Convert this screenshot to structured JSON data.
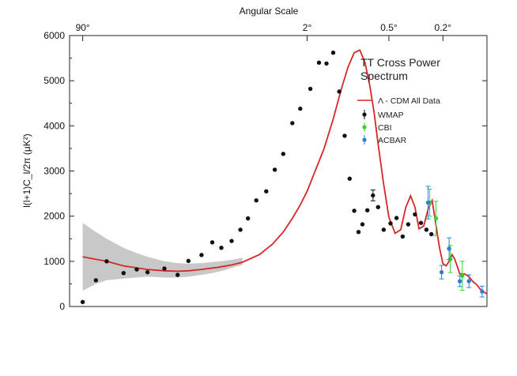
{
  "chart_data": {
    "type": "scatter",
    "title": "",
    "annotation": [
      "TT Cross Power",
      "Spectrum"
    ],
    "ylabel": "l(l+1)C_l/2π (μK²)",
    "top_axis_label": "Angular Scale",
    "top_ticks": [
      {
        "label": "90°",
        "at": 2
      },
      {
        "label": "2°",
        "at": 90
      },
      {
        "label": "0.5°",
        "at": 360
      },
      {
        "label": "0.2°",
        "at": 900
      }
    ],
    "ylim": [
      0,
      6000
    ],
    "y_ticks": [
      0,
      1000,
      2000,
      3000,
      4000,
      5000,
      6000
    ],
    "x_scale": "log",
    "xlim": [
      1.6,
      1900
    ],
    "legend": {
      "placement": "right",
      "entries": [
        {
          "label": "Λ - CDM All Data",
          "color": "#d62728",
          "kind": "line"
        },
        {
          "label": "WMAP",
          "color": "#111111",
          "kind": "point"
        },
        {
          "label": "CBI",
          "color": "#2bd92b",
          "kind": "point"
        },
        {
          "label": "ACBAR",
          "color": "#2c7fd4",
          "kind": "point"
        }
      ]
    },
    "model": {
      "name": "Λ - CDM All Data",
      "color": "#d62728",
      "x": [
        2,
        3,
        4,
        6,
        8,
        10,
        12,
        15,
        20,
        25,
        30,
        40,
        50,
        60,
        70,
        80,
        90,
        100,
        120,
        140,
        160,
        180,
        200,
        220,
        240,
        260,
        280,
        300,
        330,
        360,
        400,
        440,
        480,
        520,
        560,
        600,
        650,
        700,
        750,
        800,
        850,
        900,
        950,
        1000,
        1050,
        1100,
        1150,
        1200,
        1300,
        1400,
        1500,
        1600,
        1700,
        1800,
        1900
      ],
      "y": [
        1100,
        1000,
        900,
        820,
        790,
        780,
        790,
        820,
        870,
        920,
        980,
        1150,
        1380,
        1650,
        1950,
        2250,
        2550,
        2900,
        3500,
        4150,
        4800,
        5300,
        5620,
        5680,
        5400,
        4900,
        4300,
        3600,
        2700,
        1980,
        1620,
        1700,
        2200,
        2450,
        2200,
        1720,
        1780,
        2150,
        2350,
        1800,
        1300,
        950,
        900,
        1000,
        1150,
        1050,
        880,
        720,
        720,
        660,
        550,
        480,
        380,
        320,
        280
      ]
    },
    "band": {
      "x": [
        2,
        2.5,
        3,
        4,
        5,
        6,
        8,
        10,
        12,
        15,
        18,
        22,
        26,
        30
      ],
      "upper": [
        1850,
        1650,
        1500,
        1300,
        1180,
        1100,
        1000,
        960,
        950,
        960,
        985,
        1010,
        1040,
        1080
      ],
      "lower": [
        350,
        500,
        580,
        620,
        640,
        660,
        640,
        640,
        660,
        700,
        740,
        800,
        870,
        920
      ]
    },
    "series": [
      {
        "name": "WMAP",
        "color": "#111111",
        "x": [
          2,
          2.5,
          3,
          4,
          5,
          6,
          8,
          10,
          12,
          15,
          18,
          21,
          25,
          29,
          33,
          38,
          45,
          52,
          60,
          70,
          80,
          95,
          110,
          125,
          140,
          155,
          170,
          185,
          200,
          215,
          230,
          250,
          275,
          300,
          330,
          370,
          410,
          455,
          500,
          560,
          620,
          680,
          740
        ],
        "y": [
          100,
          580,
          1000,
          740,
          820,
          760,
          840,
          700,
          1010,
          1140,
          1420,
          1300,
          1450,
          1700,
          1950,
          2350,
          2550,
          3030,
          3380,
          4060,
          4380,
          4820,
          5400,
          5380,
          5620,
          4760,
          3780,
          2830,
          2120,
          1650,
          1820,
          2130,
          2460,
          2200,
          1700,
          1840,
          1960,
          1550,
          1820,
          2040,
          1850,
          1700,
          1600
        ],
        "err": [
          0,
          0,
          0,
          0,
          0,
          0,
          0,
          0,
          0,
          0,
          0,
          0,
          0,
          0,
          0,
          0,
          0,
          0,
          0,
          0,
          0,
          0,
          0,
          0,
          0,
          0,
          0,
          0,
          0,
          0,
          0,
          0,
          120,
          0,
          0,
          0,
          0,
          0,
          0,
          0,
          0,
          0,
          0
        ]
      },
      {
        "name": "CBI",
        "color": "#2bd92b",
        "x": [
          720,
          800,
          1020,
          1250
        ],
        "y": [
          2300,
          1950,
          1050,
          680
        ],
        "err": [
          300,
          380,
          300,
          320
        ]
      },
      {
        "name": "ACBAR",
        "color": "#2c7fd4",
        "x": [
          700,
          880,
          1000,
          1200,
          1400,
          1750
        ],
        "y": [
          2300,
          760,
          1280,
          560,
          560,
          330
        ],
        "err": [
          360,
          150,
          240,
          120,
          140,
          120
        ]
      }
    ]
  }
}
